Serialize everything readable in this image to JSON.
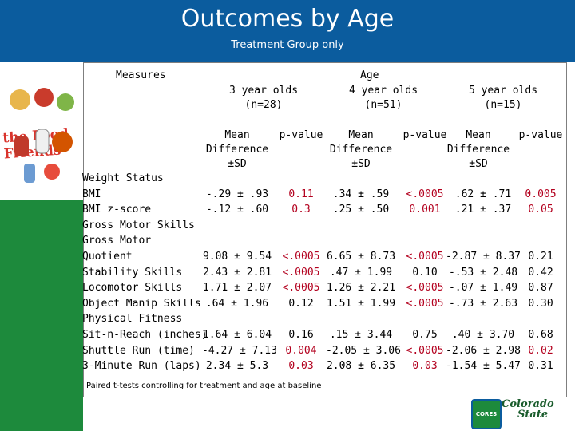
{
  "header": {
    "title": "Outcomes by Age",
    "subtitle": "Treatment Group only"
  },
  "logo": {
    "text": "the Food Friends"
  },
  "table": {
    "measures_label": "Measures",
    "age_label": "Age",
    "groups": [
      {
        "name": "3 year olds",
        "n": "(n=28)"
      },
      {
        "name": "4 year olds",
        "n": "(n=51)"
      },
      {
        "name": "5 year olds",
        "n": "(n=15)"
      }
    ],
    "col_mean": [
      "Mean",
      "Difference",
      "±SD"
    ],
    "col_p": "p-value",
    "rows": [
      {
        "label": "Weight Status",
        "heading": true
      },
      {
        "label": "BMI",
        "v": [
          "-.29 ± .93",
          "0.11",
          ".34 ± .59",
          "<.0005",
          ".62 ± .71",
          "0.005"
        ],
        "red": [
          false,
          true,
          false,
          true,
          false,
          true
        ]
      },
      {
        "label": "BMI z-score",
        "v": [
          "-.12 ± .60",
          "0.3",
          ".25 ± .50",
          "0.001",
          ".21 ± .37",
          "0.05"
        ],
        "red": [
          false,
          true,
          false,
          true,
          false,
          true
        ]
      },
      {
        "label": "Gross Motor Skills",
        "heading": true
      },
      {
        "label": "Gross Motor",
        "heading": false
      },
      {
        "label": "Quotient",
        "v": [
          "9.08 ± 9.54",
          "<.0005",
          "6.65 ± 8.73",
          "<.0005",
          "-2.87 ± 8.37",
          "0.21"
        ],
        "red": [
          false,
          true,
          false,
          true,
          false,
          false
        ]
      },
      {
        "label": "Stability Skills",
        "v": [
          "2.43 ± 2.81",
          "<.0005",
          ".47 ± 1.99",
          "0.10",
          "-.53 ± 2.48",
          "0.42"
        ],
        "red": [
          false,
          true,
          false,
          false,
          false,
          false
        ]
      },
      {
        "label": "Locomotor Skills",
        "v": [
          "1.71 ± 2.07",
          "<.0005",
          "1.26 ± 2.21",
          "<.0005",
          "-.07 ± 1.49",
          "0.87"
        ],
        "red": [
          false,
          true,
          false,
          true,
          false,
          false
        ]
      },
      {
        "label": "Object Manip Skills",
        "v": [
          ".64 ± 1.96",
          "0.12",
          "1.51 ± 1.99",
          "<.0005",
          "-.73 ± 2.63",
          "0.30"
        ],
        "red": [
          false,
          false,
          false,
          true,
          false,
          false
        ]
      },
      {
        "label": "Physical Fitness",
        "heading": true
      },
      {
        "label": "Sit-n-Reach (inches)",
        "v": [
          "1.64 ± 6.04",
          "0.16",
          ".15 ± 3.44",
          "0.75",
          ".40 ± 3.70",
          "0.68"
        ],
        "red": [
          false,
          false,
          false,
          false,
          false,
          false
        ]
      },
      {
        "label": "Shuttle Run (time)",
        "v": [
          "-4.27 ± 7.13",
          "0.004",
          "-2.05 ± 3.06",
          "<.0005",
          "-2.06 ± 2.98",
          "0.02"
        ],
        "red": [
          false,
          true,
          false,
          true,
          false,
          true
        ]
      },
      {
        "label": "3-Minute Run (laps)",
        "v": [
          "2.34 ± 5.3",
          "0.03",
          "2.08 ± 6.35",
          "0.03",
          "-1.54 ± 5.47",
          "0.31"
        ],
        "red": [
          false,
          true,
          false,
          true,
          false,
          false
        ]
      }
    ]
  },
  "footnote": "Paired t-tests controlling for treatment and age at baseline",
  "logos": {
    "cores": "CORES",
    "csu": [
      "Colorado",
      "State"
    ]
  },
  "colors": {
    "header": "#0b5c9e",
    "sidebar": "#1d8a3c",
    "significant": "#b3001e"
  }
}
